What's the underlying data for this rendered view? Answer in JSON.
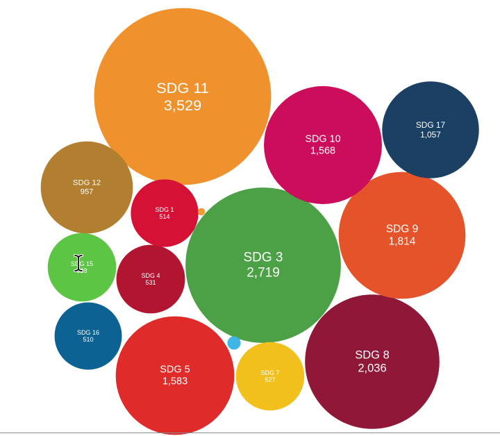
{
  "chart_data": {
    "type": "bubble",
    "title": "",
    "bubbles": [
      {
        "label": "SDG 11",
        "value": "3,529",
        "size": 3529,
        "color": "#ef912c"
      },
      {
        "label": "SDG 3",
        "value": "2,719",
        "size": 2719,
        "color": "#4ca146"
      },
      {
        "label": "SDG 8",
        "value": "2,036",
        "size": 2036,
        "color": "#8f1838"
      },
      {
        "label": "SDG 9",
        "value": "1,814",
        "size": 1814,
        "color": "#e5532a"
      },
      {
        "label": "SDG 5",
        "value": "1,583",
        "size": 1583,
        "color": "#df2b2a"
      },
      {
        "label": "SDG 10",
        "value": "1,568",
        "size": 1568,
        "color": "#cb0d5c"
      },
      {
        "label": "SDG 17",
        "value": "1,057",
        "size": 1057,
        "color": "#1b4063"
      },
      {
        "label": "SDG 12",
        "value": "957",
        "size": 957,
        "color": "#b17f2f"
      },
      {
        "label": "SDG 4",
        "value": "531",
        "size": 531,
        "color": "#b11530"
      },
      {
        "label": "SDG 15",
        "value": "528",
        "size": 528,
        "color": "#5cc544"
      },
      {
        "label": "SDG 7",
        "value": "527",
        "size": 527,
        "color": "#f1c01d"
      },
      {
        "label": "SDG 1",
        "value": "514",
        "size": 514,
        "color": "#d51236"
      },
      {
        "label": "SDG 16",
        "value": "510",
        "size": 510,
        "color": "#0d6294"
      },
      {
        "label": "",
        "value": "",
        "size": 20,
        "color": "#3fb6e3"
      },
      {
        "label": "",
        "value": "",
        "size": 6,
        "color": "#f29a33"
      }
    ]
  }
}
